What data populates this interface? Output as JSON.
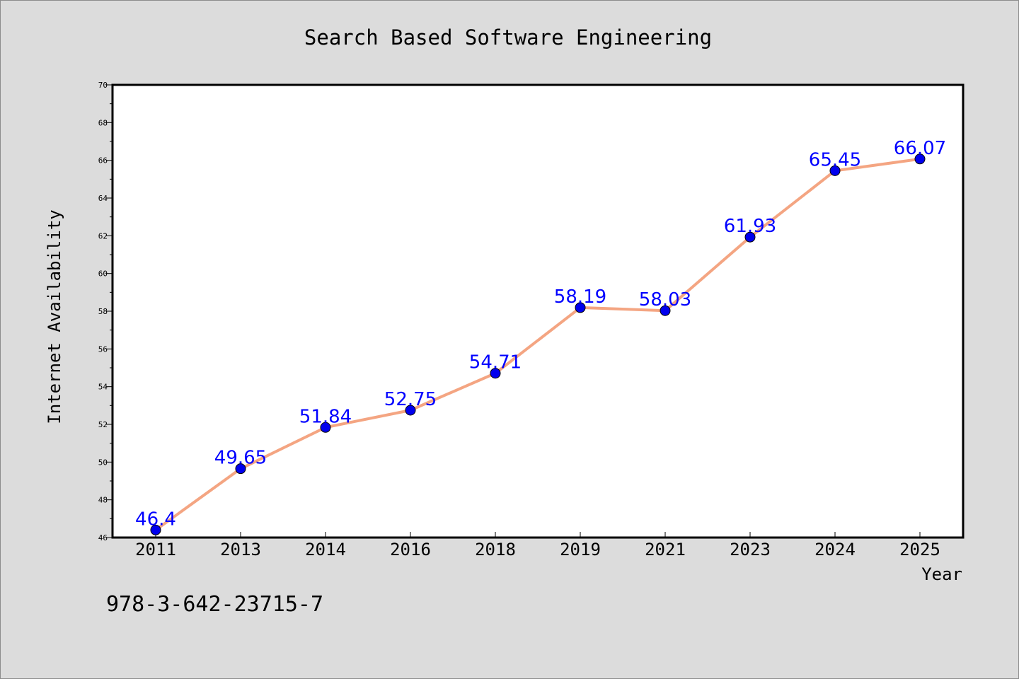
{
  "chart_data": {
    "type": "line",
    "title": "Search Based Software Engineering",
    "xlabel": "Year",
    "ylabel": "Internet Availability",
    "categories": [
      "2011",
      "2013",
      "2014",
      "2016",
      "2018",
      "2019",
      "2021",
      "2023",
      "2024",
      "2025"
    ],
    "series": [
      {
        "values": [
          46.4,
          49.65,
          51.84,
          52.75,
          54.71,
          58.19,
          58.03,
          61.93,
          65.45,
          66.07
        ]
      }
    ],
    "value_labels": [
      "46.4",
      "49.65",
      "51.84",
      "52.75",
      "54.71",
      "58.19",
      "58.03",
      "61.93",
      "65.45",
      "66.07"
    ],
    "ylim": [
      46,
      70
    ],
    "yticks": [
      "46",
      "48",
      "50",
      "52",
      "54",
      "56",
      "58",
      "60",
      "62",
      "64",
      "66",
      "68",
      "70"
    ],
    "grid": false,
    "annotation": "978-3-642-23715-7",
    "colors": {
      "line": "#f4a582",
      "marker": "#0000ee",
      "value_label": "#0000ff",
      "background": "#dcdcdc",
      "plot_background": "#ffffff"
    }
  }
}
